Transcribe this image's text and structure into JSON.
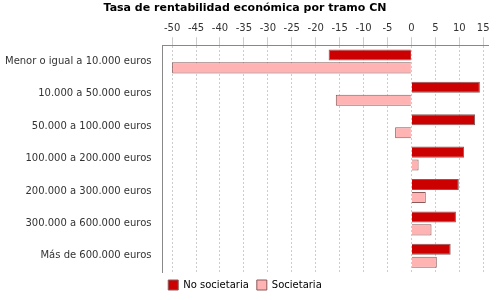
{
  "chart_data": {
    "type": "bar",
    "orientation": "horizontal",
    "title": "Tasa de rentabilidad económica por tramo CN",
    "categories": [
      "Menor o igual a 10.000 euros",
      "10.000 a 50.000 euros",
      "50.000 a 100.000 euros",
      "100.000 a 200.000 euros",
      "200.000 a 300.000 euros",
      "300.000 a 600.000 euros",
      "Más de 600.000 euros"
    ],
    "series": [
      {
        "name": "No societaria",
        "color": "#cc0000",
        "values": [
          -17.3,
          14.3,
          13.3,
          11,
          9.9,
          9.3,
          8.2
        ]
      },
      {
        "name": "Societaria",
        "color": "#ffb3b3",
        "values": [
          -50,
          -15.8,
          -3.4,
          1.5,
          3,
          4.2,
          5.3
        ]
      }
    ],
    "xlim": [
      -52,
      16
    ],
    "xticks": [
      -50,
      -45,
      -40,
      -35,
      -30,
      -25,
      -20,
      -15,
      -10,
      -5,
      0,
      5,
      10,
      15
    ],
    "grid": true,
    "legend": "bottom"
  }
}
